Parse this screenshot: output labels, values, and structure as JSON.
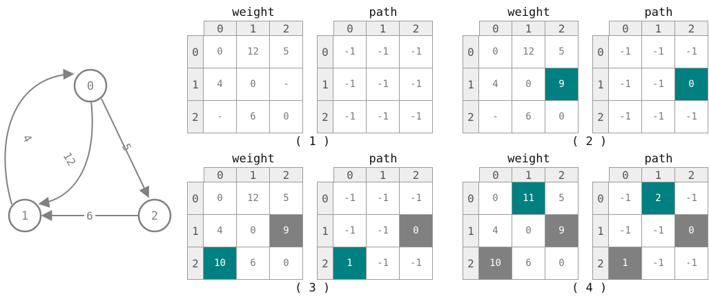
{
  "graph": {
    "nodes": [
      {
        "id": "n0",
        "label": "0"
      },
      {
        "id": "n1",
        "label": "1"
      },
      {
        "id": "n2",
        "label": "2"
      }
    ],
    "edges": [
      {
        "from": "n1",
        "to": "n0",
        "label": "4"
      },
      {
        "from": "n0",
        "to": "n1",
        "label": "12"
      },
      {
        "from": "n0",
        "to": "n2",
        "label": "5"
      },
      {
        "from": "n2",
        "to": "n1",
        "label": "6"
      }
    ]
  },
  "header_labels": [
    "0",
    "1",
    "2"
  ],
  "steps": [
    {
      "label": "( 1 )",
      "weight": {
        "title": "weight",
        "rows": [
          [
            "0",
            "12",
            "5"
          ],
          [
            "4",
            "0",
            "-"
          ],
          [
            "-",
            "6",
            "0"
          ]
        ],
        "highlights": []
      },
      "path": {
        "title": "path",
        "rows": [
          [
            "-1",
            "-1",
            "-1"
          ],
          [
            "-1",
            "-1",
            "-1"
          ],
          [
            "-1",
            "-1",
            "-1"
          ]
        ],
        "highlights": []
      }
    },
    {
      "label": "( 2 )",
      "weight": {
        "title": "weight",
        "rows": [
          [
            "0",
            "12",
            "5"
          ],
          [
            "4",
            "0",
            "9"
          ],
          [
            "-",
            "6",
            "0"
          ]
        ],
        "highlights": [
          {
            "row": 1,
            "col": 2,
            "color": "teal"
          }
        ]
      },
      "path": {
        "title": "path",
        "rows": [
          [
            "-1",
            "-1",
            "-1"
          ],
          [
            "-1",
            "-1",
            "0"
          ],
          [
            "-1",
            "-1",
            "-1"
          ]
        ],
        "highlights": [
          {
            "row": 1,
            "col": 2,
            "color": "teal"
          }
        ]
      }
    },
    {
      "label": "( 3 )",
      "weight": {
        "title": "weight",
        "rows": [
          [
            "0",
            "12",
            "5"
          ],
          [
            "4",
            "0",
            "9"
          ],
          [
            "10",
            "6",
            "0"
          ]
        ],
        "highlights": [
          {
            "row": 1,
            "col": 2,
            "color": "gray"
          },
          {
            "row": 2,
            "col": 0,
            "color": "teal"
          }
        ]
      },
      "path": {
        "title": "path",
        "rows": [
          [
            "-1",
            "-1",
            "-1"
          ],
          [
            "-1",
            "-1",
            "0"
          ],
          [
            "1",
            "-1",
            "-1"
          ]
        ],
        "highlights": [
          {
            "row": 1,
            "col": 2,
            "color": "gray"
          },
          {
            "row": 2,
            "col": 0,
            "color": "teal"
          }
        ]
      }
    },
    {
      "label": "( 4 )",
      "weight": {
        "title": "weight",
        "rows": [
          [
            "0",
            "11",
            "5"
          ],
          [
            "4",
            "0",
            "9"
          ],
          [
            "10",
            "6",
            "0"
          ]
        ],
        "highlights": [
          {
            "row": 0,
            "col": 1,
            "color": "teal"
          },
          {
            "row": 1,
            "col": 2,
            "color": "gray"
          },
          {
            "row": 2,
            "col": 0,
            "color": "gray"
          }
        ]
      },
      "path": {
        "title": "path",
        "rows": [
          [
            "-1",
            "2",
            "-1"
          ],
          [
            "-1",
            "-1",
            "0"
          ],
          [
            "1",
            "-1",
            "-1"
          ]
        ],
        "highlights": [
          {
            "row": 0,
            "col": 1,
            "color": "teal"
          },
          {
            "row": 1,
            "col": 2,
            "color": "gray"
          },
          {
            "row": 2,
            "col": 0,
            "color": "gray"
          }
        ]
      }
    }
  ],
  "colors": {
    "teal": "#008080",
    "gray": "#808080",
    "edge": "#808080",
    "header_bg": "#eeeeee"
  }
}
